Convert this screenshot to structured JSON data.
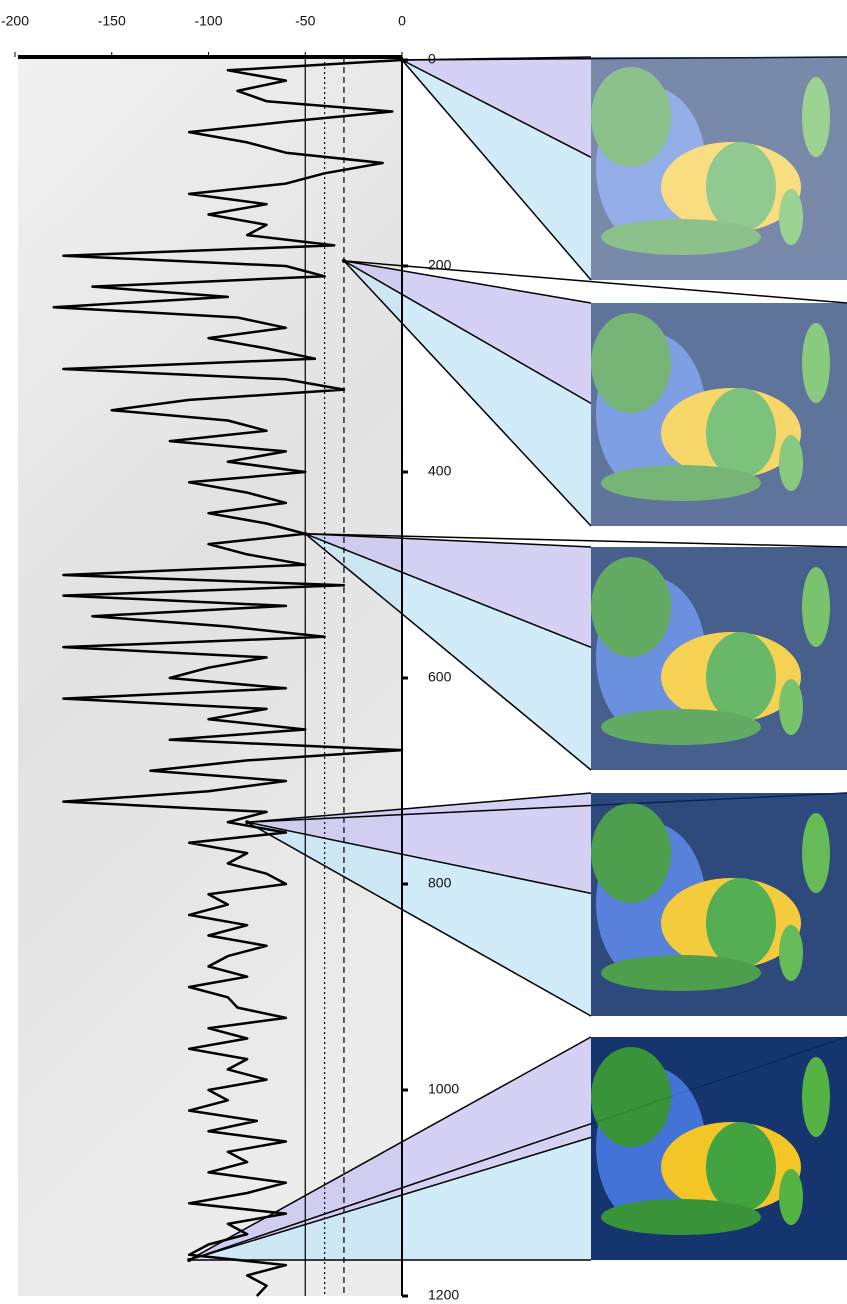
{
  "chart_data": {
    "type": "line",
    "orientation": "vertical",
    "color": "#000000",
    "xlim": [
      -200,
      0
    ],
    "xticks": [
      -200,
      -150,
      -100,
      -50,
      0
    ],
    "ylim": [
      0,
      1200
    ],
    "yticks": [
      0,
      200,
      400,
      600,
      800,
      1000,
      1200
    ],
    "x": [
      0,
      10,
      20,
      30,
      40,
      50,
      60,
      70,
      80,
      90,
      100,
      110,
      120,
      130,
      140,
      150,
      160,
      170,
      180,
      190,
      200,
      210,
      220,
      230,
      240,
      250,
      260,
      270,
      280,
      290,
      300,
      310,
      320,
      330,
      340,
      350,
      360,
      370,
      380,
      390,
      400,
      410,
      420,
      430,
      440,
      450,
      460,
      470,
      480,
      490,
      500,
      510,
      520,
      530,
      540,
      550,
      560,
      570,
      580,
      590,
      600,
      610,
      620,
      630,
      640,
      650,
      660,
      670,
      680,
      690,
      700,
      710,
      720,
      730,
      740,
      750,
      760,
      770,
      780,
      790,
      800,
      810,
      820,
      830,
      840,
      850,
      860,
      870,
      880,
      890,
      900,
      910,
      920,
      930,
      940,
      950,
      960,
      970,
      980,
      990,
      1000,
      1010,
      1020,
      1030,
      1040,
      1050,
      1060,
      1070,
      1080,
      1090,
      1100,
      1110,
      1120,
      1130,
      1140,
      1150,
      1160,
      1170,
      1180,
      1190,
      1200
    ],
    "values": [
      0,
      -90,
      -60,
      -85,
      -70,
      -5,
      -60,
      -110,
      -80,
      -60,
      -10,
      -40,
      -60,
      -110,
      -70,
      -100,
      -70,
      -80,
      -35,
      -175,
      -60,
      -40,
      -160,
      -90,
      -180,
      -85,
      -60,
      -100,
      -70,
      -45,
      -175,
      -60,
      -30,
      -110,
      -150,
      -90,
      -70,
      -120,
      -60,
      -90,
      -50,
      -110,
      -80,
      -60,
      -100,
      -70,
      -50,
      -100,
      -80,
      -50,
      -175,
      -30,
      -175,
      -60,
      -160,
      -90,
      -40,
      -175,
      -70,
      -100,
      -120,
      -60,
      -175,
      -70,
      -100,
      -50,
      -120,
      0,
      -80,
      -130,
      -60,
      -100,
      -175,
      -70,
      -90,
      -60,
      -110,
      -80,
      -90,
      -70,
      -60,
      -100,
      -90,
      -110,
      -80,
      -100,
      -70,
      -90,
      -100,
      -80,
      -110,
      -90,
      -85,
      -60,
      -100,
      -80,
      -110,
      -80,
      -90,
      -70,
      -100,
      -90,
      -110,
      -75,
      -100,
      -60,
      -90,
      -80,
      -100,
      -60,
      -80,
      -110,
      -60,
      -90,
      -80,
      -100,
      -110,
      -60,
      -80,
      -70,
      -75
    ],
    "ref_lines": [
      {
        "value": -50,
        "style": "solid"
      },
      {
        "value": -40,
        "style": "dotted"
      },
      {
        "value": -30,
        "style": "dashed"
      }
    ],
    "highlights": [
      {
        "time": 0,
        "value": 0
      },
      {
        "time": 195,
        "value": -30
      },
      {
        "time": 460,
        "value": -50
      },
      {
        "time": 740,
        "value": -80
      },
      {
        "time": 1165,
        "value": -110
      }
    ]
  }
}
